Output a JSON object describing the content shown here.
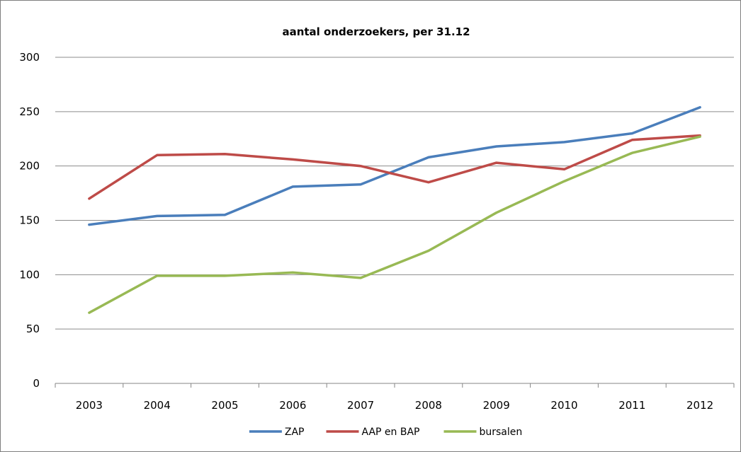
{
  "chart_data": {
    "type": "line",
    "title": "aantal onderzoekers, per 31.12",
    "xlabel": "",
    "ylabel": "",
    "categories": [
      "2003",
      "2004",
      "2005",
      "2006",
      "2007",
      "2008",
      "2009",
      "2010",
      "2011",
      "2012"
    ],
    "ylim": [
      0,
      300
    ],
    "yticks": [
      "0",
      "50",
      "100",
      "150",
      "200",
      "250",
      "300"
    ],
    "grid": true,
    "legend": "bottom",
    "series": [
      {
        "name": "ZAP",
        "color": "#4a7ebb",
        "values": [
          146,
          154,
          155,
          181,
          183,
          208,
          218,
          222,
          230,
          254
        ]
      },
      {
        "name": "AAP en BAP",
        "color": "#be4b48",
        "values": [
          170,
          210,
          211,
          206,
          200,
          185,
          203,
          197,
          224,
          228
        ]
      },
      {
        "name": "bursalen",
        "color": "#98b954",
        "values": [
          65,
          99,
          99,
          102,
          97,
          122,
          157,
          186,
          212,
          227
        ]
      }
    ]
  }
}
